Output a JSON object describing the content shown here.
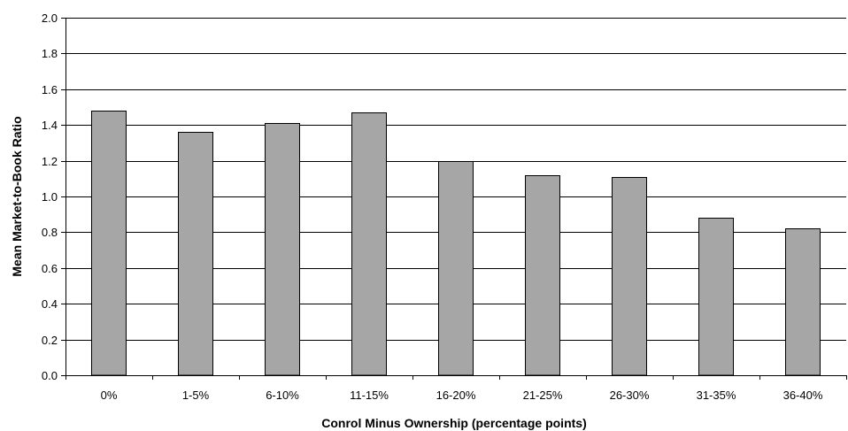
{
  "chart_data": {
    "type": "bar",
    "categories": [
      "0%",
      "1-5%",
      "6-10%",
      "11-15%",
      "16-20%",
      "21-25%",
      "26-30%",
      "31-35%",
      "36-40%"
    ],
    "values": [
      1.48,
      1.36,
      1.41,
      1.47,
      1.2,
      1.12,
      1.11,
      0.88,
      0.82
    ],
    "xlabel": "Conrol Minus Ownership (percentage points)",
    "ylabel": "Mean Market-to-Book Ratio",
    "ylim": [
      0.0,
      2.0
    ],
    "yticks": [
      "0.0",
      "0.2",
      "0.4",
      "0.6",
      "0.8",
      "1.0",
      "1.2",
      "1.4",
      "1.6",
      "1.8",
      "2.0"
    ],
    "grid": true,
    "bar_color": "#a6a6a6",
    "legend": "none"
  }
}
